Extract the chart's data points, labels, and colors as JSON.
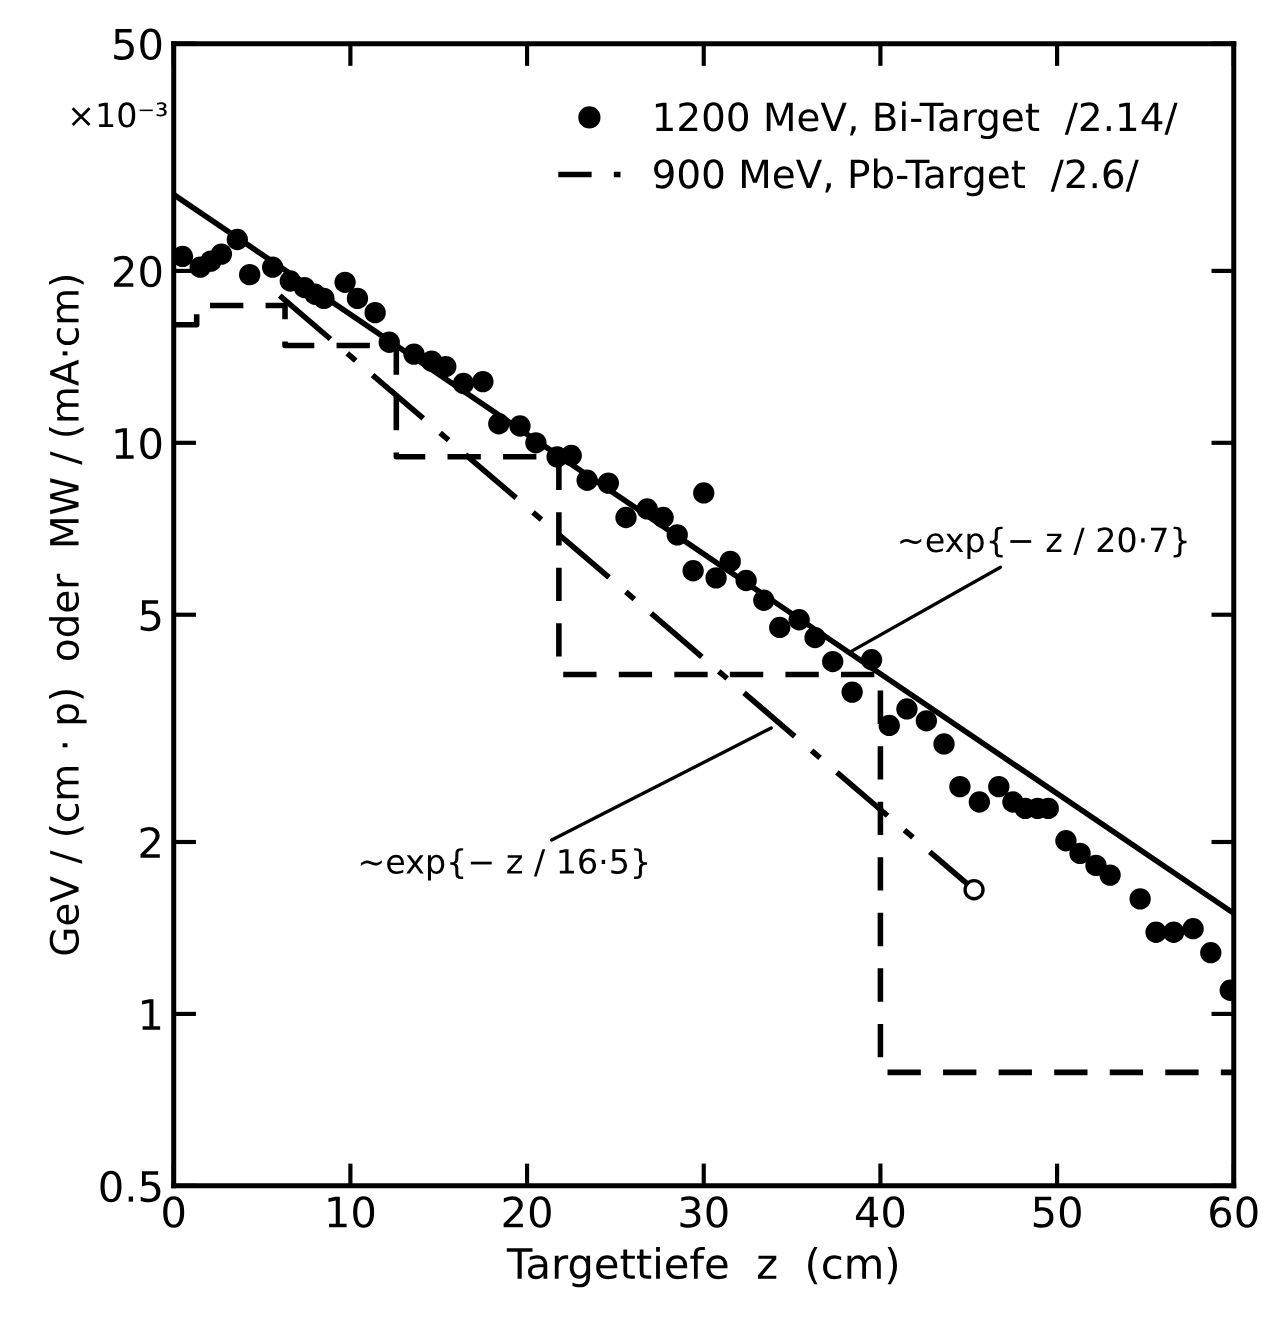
{
  "chart_data": {
    "type": "scatter",
    "xlabel": "Targettiefe  z  (cm)",
    "ylabel": "GeV / (cm · p)  oder  MW / (mA·cm)",
    "log": "y",
    "xlim": [
      0,
      60
    ],
    "ylim": [
      0.5,
      50
    ],
    "xticks": [
      0,
      10,
      20,
      30,
      40,
      50,
      60
    ],
    "yticks": [
      0.5,
      1,
      2,
      5,
      10,
      20,
      50
    ],
    "grid": false,
    "legend": "top right",
    "annotations": [
      "×10⁻³",
      {
        "text": "~exp{− z / 20·7}",
        "x": 38.1,
        "y": 4.27
      },
      {
        "text": "~exp{− z / 16·5}",
        "x": 34.1,
        "y": 3.2
      }
    ],
    "series": [
      {
        "name": "1200 MeV, Bi-Target  /2.14/",
        "marker": "circle",
        "color": "#000000",
        "x": [
          0.5,
          1.5,
          2.1,
          2.7,
          3.6,
          4.3,
          5.6,
          6.6,
          7.4,
          8.0,
          8.5,
          9.7,
          10.4,
          11.4,
          12.2,
          13.6,
          14.6,
          15.4,
          16.4,
          17.5,
          18.4,
          19.6,
          20.5,
          21.7,
          22.5,
          23.4,
          24.6,
          25.6,
          26.8,
          27.7,
          28.5,
          29.4,
          30.0,
          30.7,
          31.5,
          32.4,
          33.4,
          34.3,
          35.4,
          36.3,
          37.3,
          38.4,
          39.5,
          40.5,
          41.5,
          42.6,
          43.6,
          44.5,
          45.6,
          46.7,
          47.5,
          48.2,
          48.9,
          49.5,
          50.5,
          51.3,
          52.2,
          53.0,
          54.7,
          55.6,
          56.6,
          57.7,
          58.7,
          59.8
        ],
        "values": [
          21.2,
          20.3,
          20.8,
          21.4,
          22.7,
          19.7,
          20.3,
          19.2,
          18.7,
          18.2,
          17.9,
          19.1,
          17.9,
          16.9,
          15.0,
          14.3,
          13.9,
          13.6,
          12.7,
          12.8,
          10.8,
          10.7,
          10.0,
          9.45,
          9.5,
          8.6,
          8.5,
          7.4,
          7.66,
          7.4,
          6.9,
          5.97,
          8.17,
          5.8,
          6.2,
          5.74,
          5.3,
          4.75,
          4.9,
          4.56,
          4.14,
          3.66,
          4.17,
          3.2,
          3.42,
          3.26,
          2.97,
          2.5,
          2.35,
          2.5,
          2.35,
          2.29,
          2.29,
          2.29,
          2.01,
          1.91,
          1.82,
          1.75,
          1.59,
          1.39,
          1.39,
          1.41,
          1.28,
          1.1
        ]
      },
      {
        "name": "900 MeV, Pb-Target  /2.6/",
        "type": "step",
        "line_style": "dashed",
        "color": "#000000",
        "x": [
          0,
          1.3,
          6.3,
          12.6,
          21.8,
          40,
          60
        ],
        "values": [
          16.1,
          17.4,
          14.8,
          9.45,
          3.93,
          0.79,
          0.79
        ]
      },
      {
        "type": "line",
        "line_style": "solid",
        "color": "#000000",
        "x": [
          0,
          60
        ],
        "values": [
          27.2,
          1.5
        ]
      },
      {
        "type": "line",
        "line_style": "dashdot",
        "color": "#000000",
        "x": [
          6.0,
          45.3
        ],
        "values": [
          18.1,
          1.65
        ]
      },
      {
        "type": "scatter",
        "marker": "circle",
        "color": "#ffffff",
        "x": [
          45.3
        ],
        "values": [
          1.65
        ]
      }
    ]
  }
}
